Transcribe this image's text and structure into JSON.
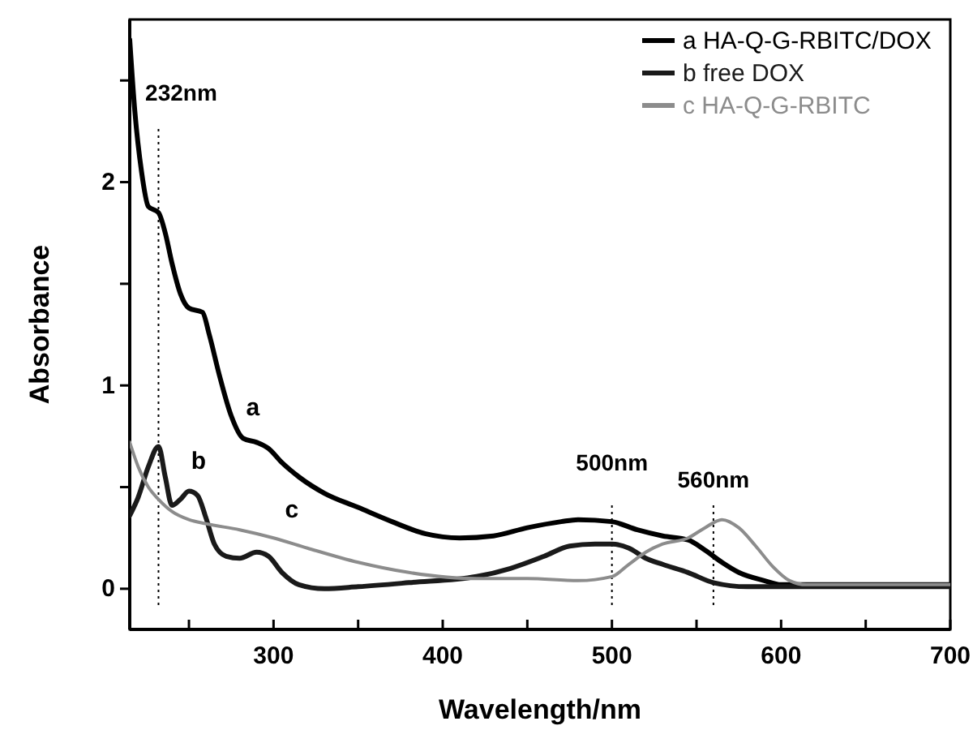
{
  "chart_data": {
    "type": "line",
    "xlabel": "Wavelength/nm",
    "ylabel": "Absorbance",
    "xlim": [
      215,
      700
    ],
    "ylim": [
      -0.2,
      2.8
    ],
    "xticks": [
      {
        "value": 250,
        "label": null
      },
      300,
      {
        "value": 350,
        "label": null
      },
      400,
      {
        "value": 450,
        "label": null
      },
      500,
      {
        "value": 550,
        "label": null
      },
      600,
      {
        "value": 650,
        "label": null
      },
      700
    ],
    "yticks": [
      0,
      {
        "value": 0.5,
        "label": null
      },
      1,
      {
        "value": 1.5,
        "label": null
      },
      2,
      {
        "value": 2.5,
        "label": null
      }
    ],
    "grid": false,
    "legend": "top right",
    "marker": "none",
    "line_style": "solid",
    "series": [
      {
        "name": "a HA-Q-G-RBITC/DOX",
        "color": "#000000",
        "x": [
          215,
          218,
          222,
          226,
          232,
          236,
          240,
          245,
          250,
          258,
          262,
          268,
          275,
          282,
          290,
          297,
          305,
          315,
          330,
          350,
          370,
          390,
          410,
          430,
          450,
          470,
          480,
          500,
          515,
          530,
          545,
          555,
          565,
          575,
          590,
          600,
          610,
          650,
          700
        ],
        "values": [
          2.7,
          2.35,
          2.05,
          1.88,
          1.85,
          1.75,
          1.6,
          1.45,
          1.38,
          1.36,
          1.25,
          1.05,
          0.85,
          0.74,
          0.72,
          0.69,
          0.62,
          0.55,
          0.47,
          0.4,
          0.33,
          0.27,
          0.25,
          0.26,
          0.3,
          0.33,
          0.34,
          0.33,
          0.29,
          0.26,
          0.24,
          0.19,
          0.13,
          0.08,
          0.04,
          0.02,
          0.02,
          0.02,
          0.02
        ]
      },
      {
        "name": "b free DOX",
        "color": "#1a1a1a",
        "x": [
          215,
          220,
          226,
          232,
          236,
          240,
          245,
          250,
          255,
          260,
          265,
          272,
          280,
          290,
          297,
          305,
          315,
          330,
          350,
          380,
          420,
          440,
          460,
          475,
          490,
          500,
          510,
          520,
          530,
          545,
          560,
          580,
          600,
          650,
          700
        ],
        "values": [
          0.36,
          0.45,
          0.6,
          0.7,
          0.55,
          0.41,
          0.44,
          0.48,
          0.46,
          0.35,
          0.22,
          0.16,
          0.15,
          0.18,
          0.16,
          0.08,
          0.02,
          0.0,
          0.01,
          0.03,
          0.06,
          0.1,
          0.16,
          0.21,
          0.22,
          0.22,
          0.2,
          0.15,
          0.12,
          0.08,
          0.03,
          0.01,
          0.01,
          0.01,
          0.01
        ]
      },
      {
        "name": "c HA-Q-G-RBITC",
        "color": "#8c8c8c",
        "x": [
          215,
          220,
          226,
          232,
          240,
          250,
          260,
          280,
          300,
          320,
          350,
          380,
          420,
          450,
          480,
          500,
          510,
          520,
          530,
          545,
          555,
          565,
          575,
          585,
          595,
          605,
          615,
          650,
          700
        ],
        "values": [
          0.72,
          0.6,
          0.5,
          0.44,
          0.38,
          0.34,
          0.32,
          0.29,
          0.25,
          0.2,
          0.13,
          0.08,
          0.05,
          0.05,
          0.04,
          0.06,
          0.12,
          0.18,
          0.22,
          0.25,
          0.3,
          0.34,
          0.3,
          0.21,
          0.11,
          0.04,
          0.02,
          0.02,
          0.02
        ]
      }
    ],
    "ref_lines": [
      {
        "axis": "x",
        "value": 232,
        "label": "232nm",
        "line_style": "dotted",
        "color": "#000000"
      },
      {
        "axis": "x",
        "value": 500,
        "label": "500nm",
        "line_style": "dotted",
        "color": "#000000"
      },
      {
        "axis": "x",
        "value": 560,
        "label": "560nm",
        "line_style": "dotted",
        "color": "#000000"
      }
    ],
    "annotations": [
      {
        "text": "a",
        "x": 282,
        "y": 0.74
      },
      {
        "text": "b",
        "x": 250,
        "y": 0.48
      },
      {
        "text": "c",
        "x": 305,
        "y": 0.237
      }
    ]
  }
}
